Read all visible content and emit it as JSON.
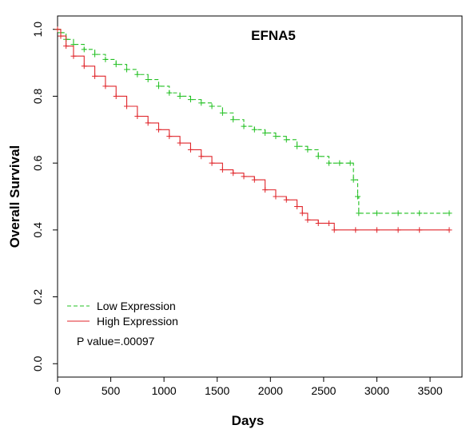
{
  "chart_data": {
    "type": "line",
    "title": "EFNA5",
    "xlabel": "Days",
    "ylabel": "Overall Survival",
    "xlim": [
      0,
      3800
    ],
    "ylim": [
      -0.04,
      1.04
    ],
    "x_ticks": [
      0,
      500,
      1000,
      1500,
      2000,
      2500,
      3000,
      3500
    ],
    "x_tick_labels": [
      "0",
      "500",
      "1000",
      "1500",
      "2000",
      "2500",
      "3000",
      "3500"
    ],
    "y_ticks": [
      0.0,
      0.2,
      0.4,
      0.6,
      0.8,
      1.0
    ],
    "y_tick_labels": [
      "0.0",
      "0.2",
      "0.4",
      "0.6",
      "0.8",
      "1.0"
    ],
    "grid": false,
    "legend_position": "bottom-left",
    "annotation": "P value=.00097",
    "series": [
      {
        "name": "Low Expression",
        "color": "#22c022",
        "dash": "dashed",
        "x": [
          0,
          30,
          80,
          150,
          250,
          350,
          450,
          550,
          650,
          750,
          850,
          950,
          1050,
          1150,
          1250,
          1350,
          1450,
          1550,
          1650,
          1750,
          1850,
          1950,
          2050,
          2150,
          2250,
          2350,
          2450,
          2550,
          2650,
          2750,
          2780,
          2820,
          2830,
          3000,
          3200,
          3400,
          3680
        ],
        "y": [
          1.0,
          0.99,
          0.97,
          0.955,
          0.94,
          0.925,
          0.91,
          0.895,
          0.88,
          0.865,
          0.85,
          0.83,
          0.81,
          0.8,
          0.79,
          0.78,
          0.77,
          0.75,
          0.73,
          0.71,
          0.7,
          0.69,
          0.68,
          0.67,
          0.65,
          0.64,
          0.62,
          0.6,
          0.6,
          0.6,
          0.55,
          0.5,
          0.45,
          0.45,
          0.45,
          0.45,
          0.45
        ]
      },
      {
        "name": "High Expression",
        "color": "#e0262b",
        "dash": "solid",
        "x": [
          0,
          30,
          80,
          150,
          250,
          350,
          450,
          550,
          650,
          750,
          850,
          950,
          1050,
          1150,
          1250,
          1350,
          1450,
          1550,
          1650,
          1750,
          1850,
          1950,
          2050,
          2150,
          2250,
          2300,
          2350,
          2450,
          2550,
          2600,
          2800,
          3000,
          3200,
          3400,
          3680
        ],
        "y": [
          1.0,
          0.98,
          0.95,
          0.92,
          0.89,
          0.86,
          0.83,
          0.8,
          0.77,
          0.74,
          0.72,
          0.7,
          0.68,
          0.66,
          0.64,
          0.62,
          0.6,
          0.58,
          0.57,
          0.56,
          0.55,
          0.52,
          0.5,
          0.49,
          0.47,
          0.45,
          0.43,
          0.42,
          0.42,
          0.4,
          0.4,
          0.4,
          0.4,
          0.4,
          0.4
        ]
      }
    ]
  }
}
